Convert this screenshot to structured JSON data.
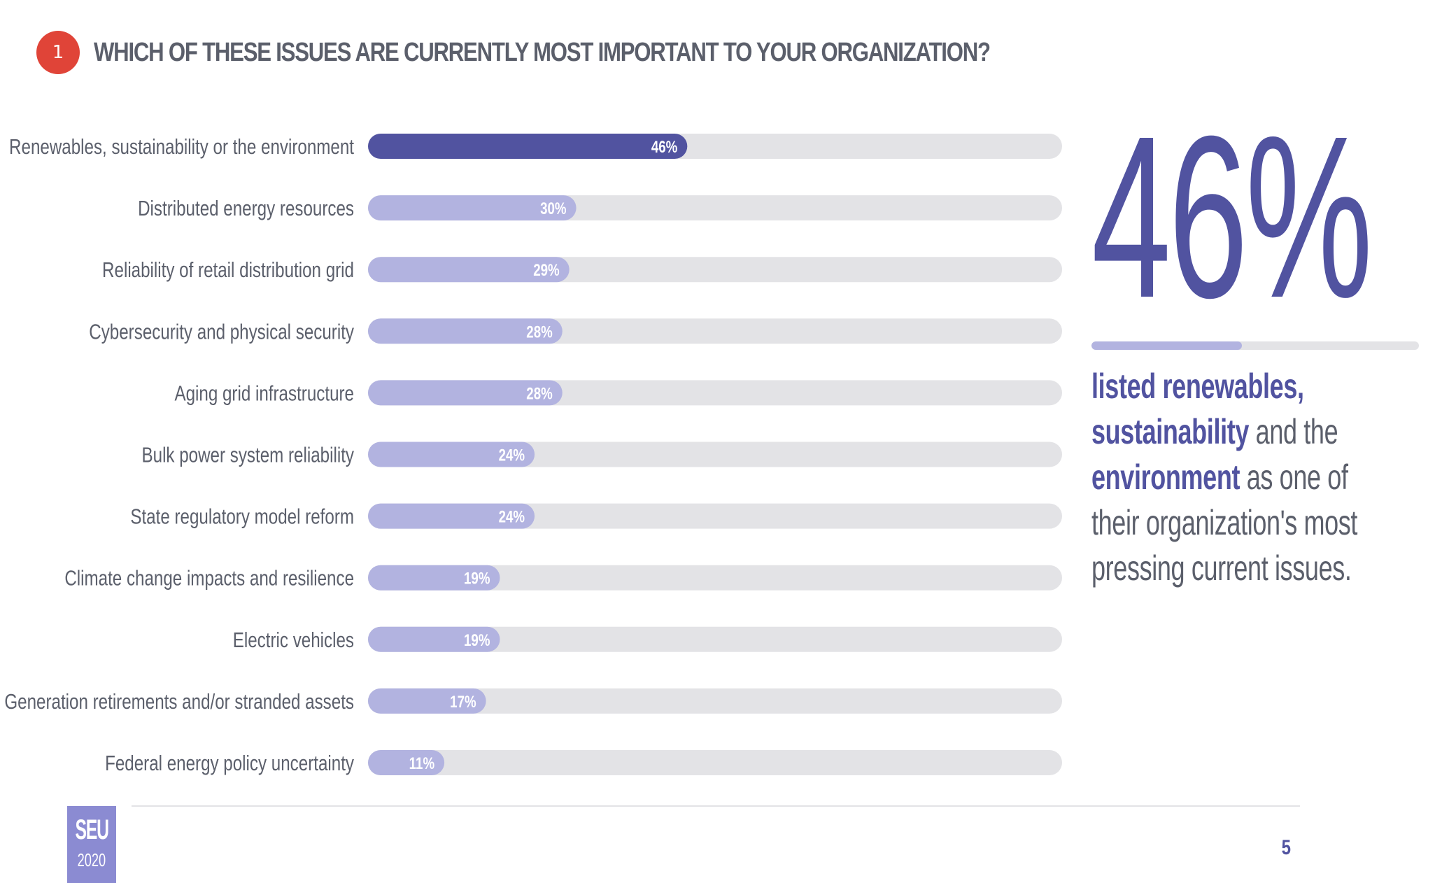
{
  "header": {
    "badge": "1",
    "title": "WHICH OF THESE ISSUES ARE CURRENTLY MOST IMPORTANT TO YOUR ORGANIZATION?"
  },
  "colors": {
    "highlight": "#5153a0",
    "bar": "#b2b3e0",
    "track": "#e3e3e6",
    "label": "#5b5f6b",
    "badge": "#e04438"
  },
  "chart_data": {
    "type": "bar",
    "orientation": "horizontal",
    "categories": [
      "Renewables, sustainability or the environment",
      "Distributed energy resources",
      "Reliability of retail distribution grid",
      "Cybersecurity and physical security",
      "Aging grid infrastructure",
      "Bulk power system reliability",
      "State regulatory model reform",
      "Climate change impacts and resilience",
      "Electric vehicles",
      "Generation retirements and/or stranded assets",
      "Federal energy policy uncertainty"
    ],
    "values": [
      46,
      30,
      29,
      28,
      28,
      24,
      24,
      19,
      19,
      17,
      11
    ],
    "value_labels": [
      "46%",
      "30%",
      "29%",
      "28%",
      "28%",
      "24%",
      "24%",
      "19%",
      "19%",
      "17%",
      "11%"
    ],
    "xlim": [
      0,
      100
    ],
    "highlight_index": 0,
    "grid": false
  },
  "stat": {
    "value": "46%",
    "fraction": 0.46,
    "text_a": "listed renewables,",
    "text_b": "sustainability",
    "text_c": " and the ",
    "text_d": "environment",
    "text_e": " as one of their organization's most pressing current issues."
  },
  "footer": {
    "logo_top": "SEU",
    "logo_bottom": "2020",
    "page": "5"
  }
}
